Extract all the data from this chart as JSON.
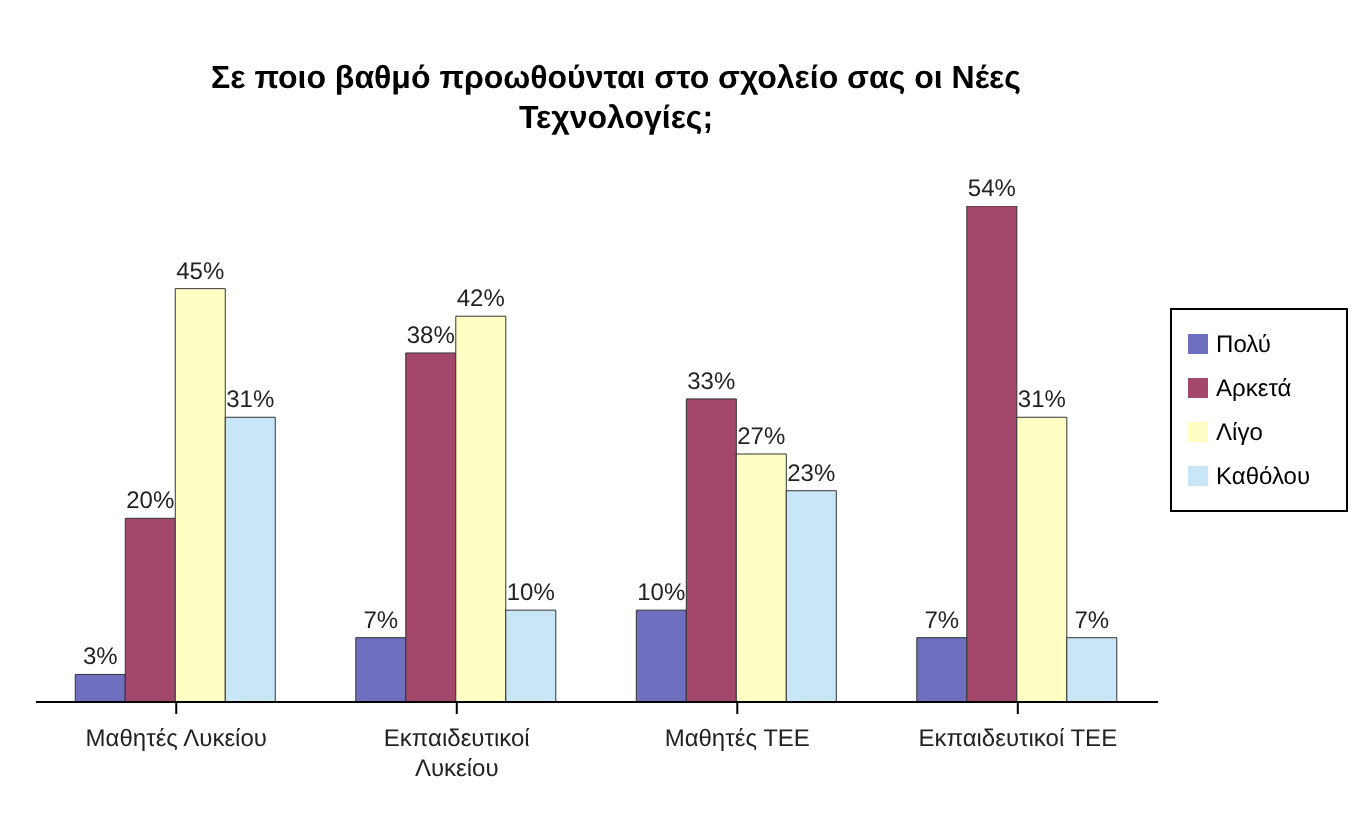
{
  "chart_data": {
    "type": "bar",
    "title": "Σε ποιο βαθμό προωθούνται στο σχολείο σας οι Νέες Τεχνολογίες;",
    "categories": [
      "Μαθητές Λυκείου",
      "Εκπαιδευτικοί Λυκείου",
      "Μαθητές ΤΕΕ",
      "Εκπαιδευτικοί ΤΕΕ"
    ],
    "series": [
      {
        "name": "Πολύ",
        "color": "#6f6fc0",
        "values": [
          3,
          7,
          10,
          7
        ],
        "value_labels": [
          "3%",
          "7%",
          "10%",
          "7%"
        ]
      },
      {
        "name": "Αρκετά",
        "color": "#a3486c",
        "values": [
          20,
          38,
          33,
          54
        ],
        "value_labels": [
          "20%",
          "38%",
          "33%",
          "54%"
        ]
      },
      {
        "name": "Λίγο",
        "color": "#ffffc4",
        "values": [
          45,
          42,
          27,
          31
        ],
        "value_labels": [
          "45%",
          "42%",
          "27%",
          "31%"
        ]
      },
      {
        "name": "Καθόλου",
        "color": "#c8e6f6",
        "values": [
          31,
          10,
          23,
          7
        ],
        "value_labels": [
          "31%",
          "10%",
          "23%",
          "7%"
        ]
      }
    ],
    "legend": "right",
    "grid": false
  }
}
